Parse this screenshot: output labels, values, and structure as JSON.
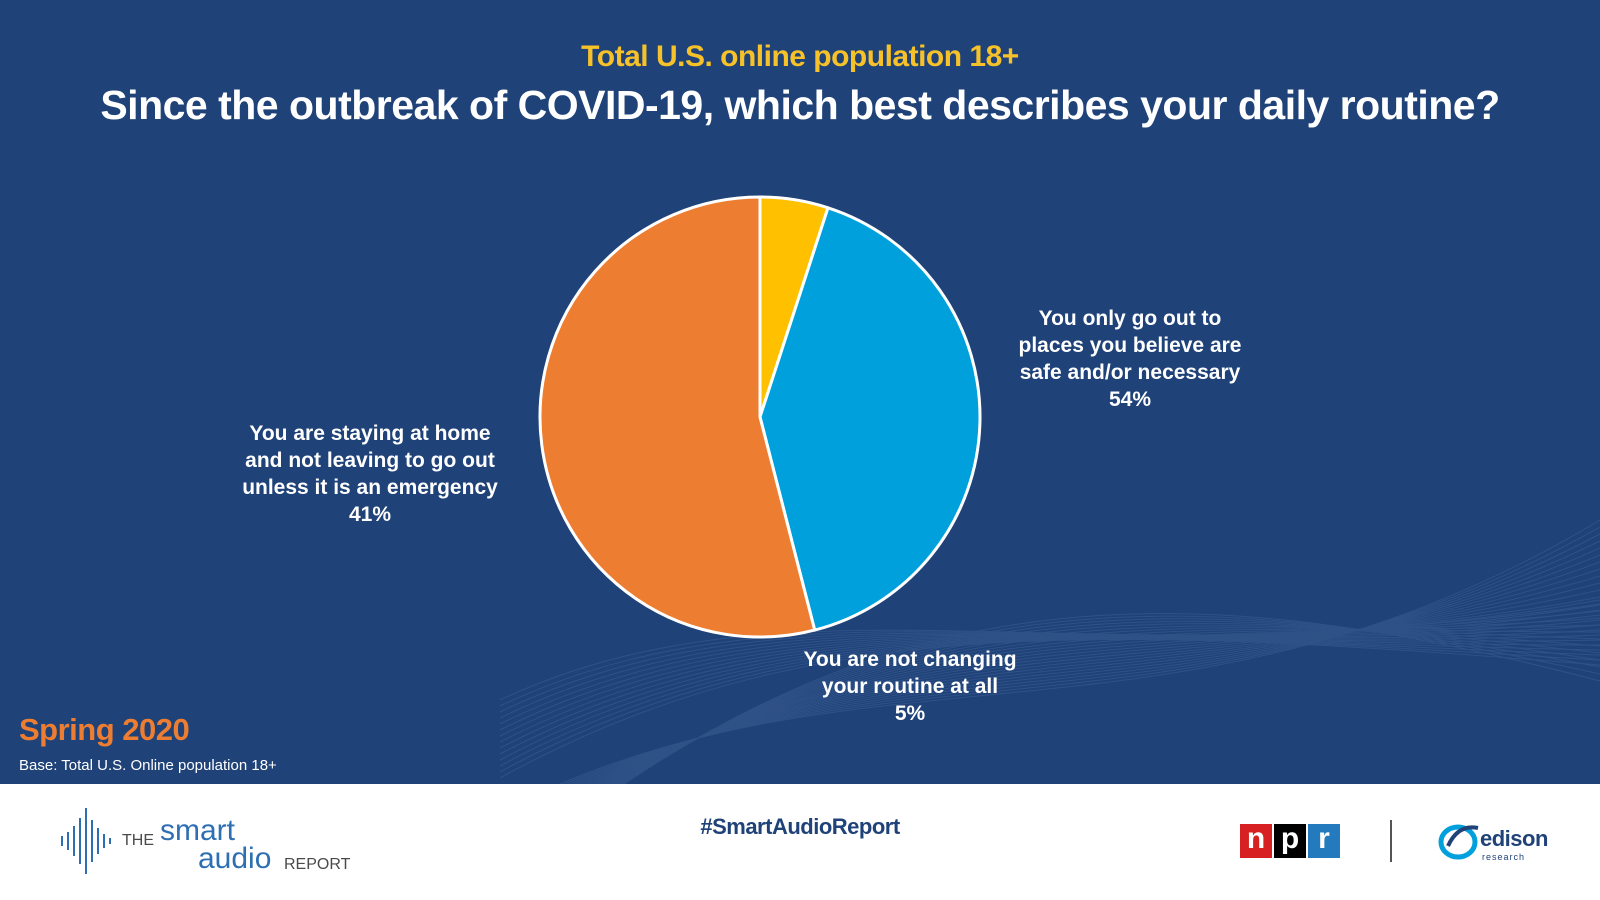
{
  "header": {
    "subtitle": "Total U.S. online population 18+",
    "title": "Since the outbreak of COVID-19, which best describes your daily routine?"
  },
  "chart_data": {
    "type": "pie",
    "title": "Since the outbreak of COVID-19, which best describes your daily routine?",
    "subtitle": "Total U.S. online population 18+",
    "start": "12 o'clock, clockwise",
    "slices": [
      {
        "lines": [
          "You are not changing",
          "your routine at all"
        ],
        "label": "You are not changing your routine at all",
        "value": 5,
        "value_label": "5%",
        "color": "#ffc000"
      },
      {
        "lines": [
          "You are staying at home",
          "and not leaving to go out",
          "unless it is an emergency"
        ],
        "label": "You are staying at home and not leaving to go out unless it is an emergency",
        "value": 41,
        "value_label": "41%",
        "color": "#00a0dd"
      },
      {
        "lines": [
          "You only go out to",
          "places you believe are",
          "safe and/or necessary"
        ],
        "label": "You only go out to places you believe are safe and/or necessary",
        "value": 54,
        "value_label": "54%",
        "color": "#ed7d31"
      }
    ]
  },
  "notes": {
    "season": "Spring 2020",
    "base": "Base: Total U.S. Online population 18+"
  },
  "footer": {
    "logo_the": "THE",
    "logo_smart": "smart",
    "logo_audio": "audio",
    "logo_report": "REPORT",
    "hashtag": "#SmartAudioReport",
    "npr_letters": [
      "n",
      "p",
      "r"
    ],
    "npr_colors": [
      "#d62021",
      "#000000",
      "#237bbd"
    ],
    "edison_word": "edison",
    "edison_sub": "research"
  }
}
